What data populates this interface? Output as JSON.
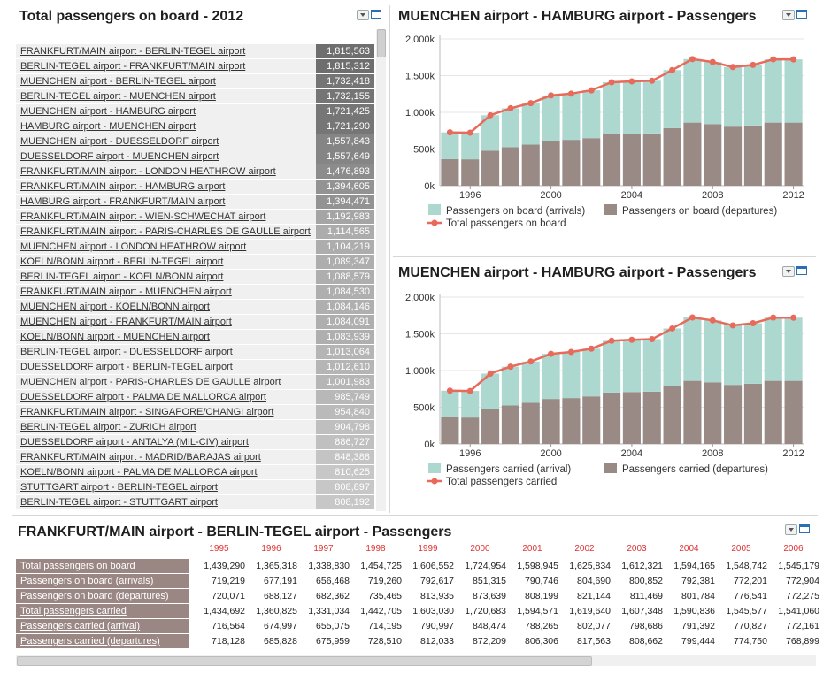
{
  "left_panel": {
    "title": "Total passengers on board - 2012",
    "routes": [
      {
        "name": "FRANKFURT/MAIN airport - BERLIN-TEGEL airport",
        "value": "1,815,563",
        "v": 1815563
      },
      {
        "name": "BERLIN-TEGEL airport - FRANKFURT/MAIN airport",
        "value": "1,815,312",
        "v": 1815312
      },
      {
        "name": "MUENCHEN airport - BERLIN-TEGEL airport",
        "value": "1,732,418",
        "v": 1732418
      },
      {
        "name": "BERLIN-TEGEL airport - MUENCHEN airport",
        "value": "1,732,155",
        "v": 1732155
      },
      {
        "name": "MUENCHEN airport - HAMBURG airport",
        "value": "1,721,425",
        "v": 1721425
      },
      {
        "name": "HAMBURG airport - MUENCHEN airport",
        "value": "1,721,290",
        "v": 1721290
      },
      {
        "name": "MUENCHEN airport - DUESSELDORF airport",
        "value": "1,557,843",
        "v": 1557843
      },
      {
        "name": "DUESSELDORF airport - MUENCHEN airport",
        "value": "1,557,649",
        "v": 1557649
      },
      {
        "name": "FRANKFURT/MAIN airport - LONDON HEATHROW airport",
        "value": "1,476,893",
        "v": 1476893
      },
      {
        "name": "FRANKFURT/MAIN airport - HAMBURG airport",
        "value": "1,394,605",
        "v": 1394605
      },
      {
        "name": "HAMBURG airport - FRANKFURT/MAIN airport",
        "value": "1,394,471",
        "v": 1394471
      },
      {
        "name": "FRANKFURT/MAIN airport - WIEN-SCHWECHAT airport",
        "value": "1,192,983",
        "v": 1192983
      },
      {
        "name": "FRANKFURT/MAIN airport - PARIS-CHARLES DE GAULLE airport",
        "value": "1,114,565",
        "v": 1114565
      },
      {
        "name": "MUENCHEN airport - LONDON HEATHROW airport",
        "value": "1,104,219",
        "v": 1104219
      },
      {
        "name": "KOELN/BONN airport - BERLIN-TEGEL airport",
        "value": "1,089,347",
        "v": 1089347
      },
      {
        "name": "BERLIN-TEGEL airport - KOELN/BONN airport",
        "value": "1,088,579",
        "v": 1088579
      },
      {
        "name": "FRANKFURT/MAIN airport - MUENCHEN airport",
        "value": "1,084,530",
        "v": 1084530
      },
      {
        "name": "MUENCHEN airport - KOELN/BONN airport",
        "value": "1,084,146",
        "v": 1084146
      },
      {
        "name": "MUENCHEN airport - FRANKFURT/MAIN airport",
        "value": "1,084,091",
        "v": 1084091
      },
      {
        "name": "KOELN/BONN airport - MUENCHEN airport",
        "value": "1,083,939",
        "v": 1083939
      },
      {
        "name": "BERLIN-TEGEL airport - DUESSELDORF airport",
        "value": "1,013,064",
        "v": 1013064
      },
      {
        "name": "DUESSELDORF airport - BERLIN-TEGEL airport",
        "value": "1,012,610",
        "v": 1012610
      },
      {
        "name": "MUENCHEN airport - PARIS-CHARLES DE GAULLE airport",
        "value": "1,001,983",
        "v": 1001983
      },
      {
        "name": "DUESSELDORF airport - PALMA DE MALLORCA airport",
        "value": "985,749",
        "v": 985749
      },
      {
        "name": "FRANKFURT/MAIN airport - SINGAPORE/CHANGI airport",
        "value": "954,840",
        "v": 954840
      },
      {
        "name": "BERLIN-TEGEL airport - ZURICH airport",
        "value": "904,798",
        "v": 904798
      },
      {
        "name": "DUESSELDORF airport - ANTALYA (MIL-CIV) airport",
        "value": "886,727",
        "v": 886727
      },
      {
        "name": "FRANKFURT/MAIN airport - MADRID/BARAJAS airport",
        "value": "848,388",
        "v": 848388
      },
      {
        "name": "KOELN/BONN airport - PALMA DE MALLORCA airport",
        "value": "810,625",
        "v": 810625
      },
      {
        "name": "STUTTGART airport - BERLIN-TEGEL airport",
        "value": "808,897",
        "v": 808897
      },
      {
        "name": "BERLIN-TEGEL airport - STUTTGART airport",
        "value": "808,192",
        "v": 808192
      }
    ]
  },
  "chart_panels": [
    {
      "title": "MUENCHEN airport - HAMBURG airport - Passengers",
      "legend": {
        "bar1": "Passengers on board (arrivals)",
        "bar2": "Passengers on board (departures)",
        "line": "Total passengers on board"
      }
    },
    {
      "title": "MUENCHEN airport - HAMBURG airport - Passengers",
      "legend": {
        "bar1": "Passengers carried (arrival)",
        "bar2": "Passengers carried (departures)",
        "line": "Total passengers carried"
      }
    }
  ],
  "colors": {
    "arrivals": "#acd8d0",
    "departures": "#998a86",
    "total_line": "#e86a5a",
    "grid": "#e6e6e6",
    "label_bg": "#9a8784"
  },
  "chart_data": [
    {
      "type": "bar",
      "title": "MUENCHEN airport - HAMBURG airport - Passengers",
      "x": [
        1995,
        1996,
        1997,
        1998,
        1999,
        2000,
        2001,
        2002,
        2003,
        2004,
        2005,
        2006,
        2007,
        2008,
        2009,
        2010,
        2011,
        2012
      ],
      "ylim": [
        0,
        2000000
      ],
      "yticks": [
        "0k",
        "500k",
        "1,000k",
        "1,500k",
        "2,000k"
      ],
      "xticks": [
        "1996",
        "2000",
        "2004",
        "2008",
        "2012"
      ],
      "series": [
        {
          "name": "Passengers on board (departures)",
          "kind": "bar",
          "values": [
            362000,
            360000,
            478000,
            525000,
            560000,
            613000,
            625000,
            648000,
            700000,
            707000,
            712000,
            785000,
            860000,
            840000,
            805000,
            820000,
            860000,
            860000
          ]
        },
        {
          "name": "Passengers on board (arrivals)",
          "kind": "bar",
          "values": [
            365000,
            363000,
            482000,
            530000,
            565000,
            617000,
            630000,
            652000,
            710000,
            715000,
            718000,
            790000,
            865000,
            845000,
            812000,
            826000,
            862000,
            861000
          ]
        },
        {
          "name": "Total passengers on board",
          "kind": "line",
          "values": [
            727000,
            723000,
            960000,
            1055000,
            1125000,
            1230000,
            1255000,
            1300000,
            1410000,
            1422000,
            1430000,
            1575000,
            1725000,
            1685000,
            1617000,
            1646000,
            1722000,
            1721000
          ]
        }
      ],
      "legend": "bottom"
    },
    {
      "type": "bar",
      "title": "MUENCHEN airport - HAMBURG airport - Passengers",
      "x": [
        1995,
        1996,
        1997,
        1998,
        1999,
        2000,
        2001,
        2002,
        2003,
        2004,
        2005,
        2006,
        2007,
        2008,
        2009,
        2010,
        2011,
        2012
      ],
      "ylim": [
        0,
        2000000
      ],
      "yticks": [
        "0k",
        "500k",
        "1,000k",
        "1,500k",
        "2,000k"
      ],
      "xticks": [
        "1996",
        "2000",
        "2004",
        "2008",
        "2012"
      ],
      "series": [
        {
          "name": "Passengers carried (departures)",
          "kind": "bar",
          "values": [
            362000,
            360000,
            478000,
            525000,
            560000,
            613000,
            625000,
            648000,
            700000,
            707000,
            712000,
            785000,
            860000,
            840000,
            805000,
            820000,
            860000,
            860000
          ]
        },
        {
          "name": "Passengers carried (arrival)",
          "kind": "bar",
          "values": [
            364000,
            362000,
            480000,
            528000,
            563000,
            615000,
            628000,
            650000,
            706000,
            712000,
            716000,
            788000,
            863000,
            843000,
            810000,
            824000,
            861000,
            860000
          ]
        },
        {
          "name": "Total passengers carried",
          "kind": "line",
          "values": [
            726000,
            722000,
            958000,
            1053000,
            1123000,
            1228000,
            1253000,
            1298000,
            1406000,
            1419000,
            1428000,
            1573000,
            1723000,
            1683000,
            1615000,
            1644000,
            1721000,
            1720000
          ]
        }
      ],
      "legend": "bottom"
    }
  ],
  "bottom_panel": {
    "title": "FRANKFURT/MAIN airport - BERLIN-TEGEL airport - Passengers",
    "years": [
      "1995",
      "1996",
      "1997",
      "1998",
      "1999",
      "2000",
      "2001",
      "2002",
      "2003",
      "2004",
      "2005",
      "2006"
    ],
    "rows": [
      {
        "label": "Total passengers on board",
        "cells": [
          "1,439,290",
          "1,365,318",
          "1,338,830",
          "1,454,725",
          "1,606,552",
          "1,724,954",
          "1,598,945",
          "1,625,834",
          "1,612,321",
          "1,594,165",
          "1,548,742",
          "1,545,179"
        ]
      },
      {
        "label": "Passengers on board (arrivals)",
        "cells": [
          "719,219",
          "677,191",
          "656,468",
          "719,260",
          "792,617",
          "851,315",
          "790,746",
          "804,690",
          "800,852",
          "792,381",
          "772,201",
          "772,904"
        ]
      },
      {
        "label": "Passengers on board (departures)",
        "cells": [
          "720,071",
          "688,127",
          "682,362",
          "735,465",
          "813,935",
          "873,639",
          "808,199",
          "821,144",
          "811,469",
          "801,784",
          "776,541",
          "772,275"
        ]
      },
      {
        "label": "Total passengers carried",
        "cells": [
          "1,434,692",
          "1,360,825",
          "1,331,034",
          "1,442,705",
          "1,603,030",
          "1,720,683",
          "1,594,571",
          "1,619,640",
          "1,607,348",
          "1,590,836",
          "1,545,577",
          "1,541,060"
        ]
      },
      {
        "label": "Passengers carried (arrival)",
        "cells": [
          "716,564",
          "674,997",
          "655,075",
          "714,195",
          "790,997",
          "848,474",
          "788,265",
          "802,077",
          "798,686",
          "791,392",
          "770,827",
          "772,161"
        ]
      },
      {
        "label": "Passengers carried (departures)",
        "cells": [
          "718,128",
          "685,828",
          "675,959",
          "728,510",
          "812,033",
          "872,209",
          "806,306",
          "817,563",
          "808,662",
          "799,444",
          "774,750",
          "768,899"
        ]
      }
    ]
  }
}
